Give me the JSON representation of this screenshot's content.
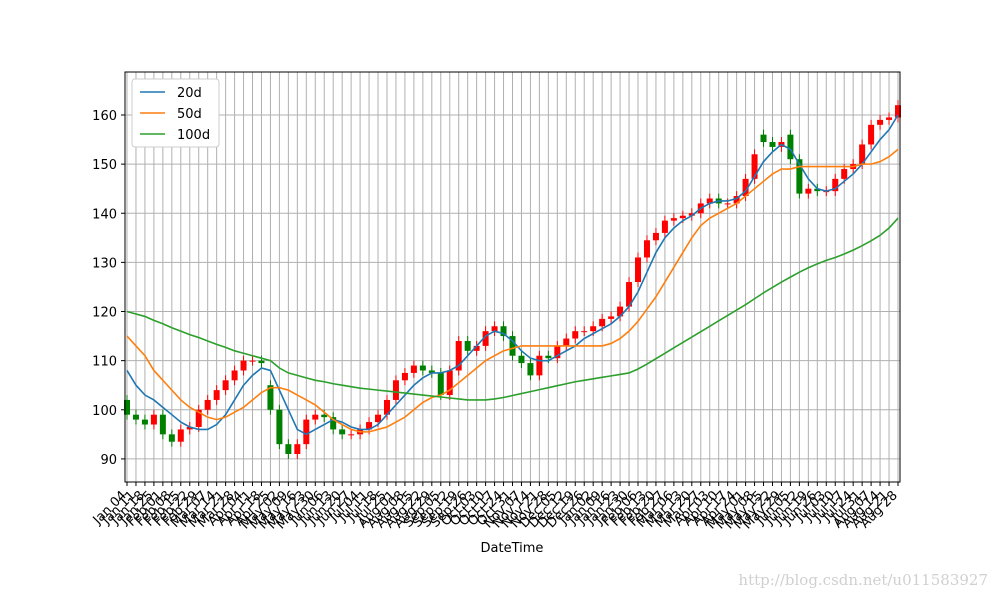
{
  "chart_data": {
    "type": "candlestick",
    "x_label": "DateTime",
    "watermark": "http://blog.csdn.net/u011583927",
    "categories": [
      "Jan 04",
      "Jan 11",
      "Jan 18",
      "Jan 25",
      "Feb 01",
      "Feb 08",
      "Feb 15",
      "Feb 22",
      "Feb 29",
      "Mar 07",
      "Mar 14",
      "Mar 21",
      "Mar 28",
      "Apr 04",
      "Apr 11",
      "Apr 18",
      "Apr 25",
      "May 02",
      "May 09",
      "May 16",
      "May 23",
      "May 30",
      "Jun 06",
      "Jun 13",
      "Jun 20",
      "Jun 27",
      "Jul 04",
      "Jul 11",
      "Jul 18",
      "Jul 25",
      "Aug 01",
      "Aug 08",
      "Aug 15",
      "Aug 22",
      "Aug 29",
      "Sep 05",
      "Sep 12",
      "Sep 19",
      "Sep 26",
      "Oct 03",
      "Oct 10",
      "Oct 17",
      "Oct 24",
      "Oct 31",
      "Nov 07",
      "Nov 14",
      "Nov 21",
      "Nov 28",
      "Dec 05",
      "Dec 12",
      "Dec 19",
      "Dec 26",
      "Jan 02",
      "Jan 09",
      "Jan 16",
      "Jan 23",
      "Jan 30",
      "Feb 06",
      "Feb 13",
      "Feb 20",
      "Feb 27",
      "Mar 06",
      "Mar 13",
      "Mar 20",
      "Mar 27",
      "Apr 03",
      "Apr 10",
      "Apr 17",
      "Apr 24",
      "May 01",
      "May 08",
      "May 15",
      "May 22",
      "May 29",
      "Jun 05",
      "Jun 12",
      "Jun 19",
      "Jun 26",
      "Jul 03",
      "Jul 10",
      "Jul 17",
      "Jul 24",
      "Jul 31",
      "Aug 07",
      "Aug 14",
      "Aug 21",
      "Aug 28"
    ],
    "open": [
      102,
      99,
      98,
      97,
      99,
      95,
      93.5,
      96,
      96.5,
      100,
      102,
      104,
      106,
      108,
      110,
      110,
      105,
      100,
      93,
      91,
      93,
      98,
      99,
      98.5,
      96,
      95,
      95,
      96,
      97.5,
      99,
      102,
      106,
      107.5,
      109,
      108,
      107.5,
      103,
      108,
      114,
      112,
      113,
      116,
      117,
      115,
      111,
      109.5,
      107,
      111,
      110.5,
      113,
      114.5,
      116,
      116,
      117,
      118.5,
      119,
      121,
      126,
      131,
      134.5,
      136,
      138.5,
      139,
      139.5,
      140,
      142,
      143,
      142,
      142,
      143.5,
      147,
      156,
      154.5,
      153.5,
      156,
      151,
      144,
      145,
      144.5,
      144.5,
      147,
      149,
      150,
      154,
      158,
      159,
      159.5
    ],
    "high": [
      103,
      100,
      99,
      100,
      100,
      96,
      97,
      97.5,
      101,
      103,
      105,
      107,
      109,
      111,
      111,
      111,
      106,
      101,
      94,
      94,
      99,
      100,
      100,
      99.5,
      97,
      96,
      97,
      98.5,
      100,
      103,
      107,
      108.5,
      110,
      110,
      109,
      108.5,
      109,
      115,
      115,
      114,
      117,
      118,
      118,
      116,
      112,
      110.5,
      112,
      112,
      114,
      115.5,
      117,
      117,
      118,
      119.5,
      120,
      122,
      127,
      132,
      135.5,
      137,
      139.5,
      140,
      140.5,
      141,
      143,
      144,
      144,
      143,
      144.5,
      148,
      153,
      157,
      155.5,
      155.5,
      157,
      152,
      146,
      146,
      145.5,
      148,
      150,
      151,
      155,
      159,
      160,
      160.5,
      163
    ],
    "low": [
      98,
      97,
      96,
      96,
      94,
      92.5,
      92.5,
      95,
      95.5,
      99,
      101,
      103,
      105,
      107,
      109,
      108.5,
      99,
      92,
      90,
      90,
      92,
      97,
      97.5,
      95,
      94,
      94,
      94,
      95,
      96.5,
      98,
      101,
      105,
      106.5,
      107,
      106.5,
      102,
      102,
      107,
      111,
      111,
      112,
      115,
      114,
      110,
      108.5,
      106,
      106,
      109.5,
      109.5,
      112,
      113.5,
      115,
      115,
      116,
      117.5,
      118,
      120,
      125,
      130,
      133.5,
      135,
      137.5,
      138,
      138.5,
      139,
      141,
      141,
      141,
      141,
      142.5,
      146,
      153.5,
      152.5,
      152.5,
      150,
      143,
      143,
      143.5,
      143.5,
      143.5,
      146,
      148,
      149,
      153,
      157,
      158,
      158.5
    ],
    "close": [
      99,
      98,
      97,
      99,
      95,
      93.5,
      96,
      96.5,
      100,
      102,
      104,
      106,
      108,
      110,
      110,
      109.5,
      100,
      93,
      91,
      93,
      98,
      99,
      98.5,
      96,
      95,
      95,
      96,
      97.5,
      99,
      102,
      106,
      107.5,
      109,
      108,
      107.5,
      103,
      108,
      114,
      112,
      113,
      116,
      117,
      115,
      111,
      109.5,
      107,
      111,
      110.5,
      113,
      114.5,
      116,
      116,
      117,
      118.5,
      119,
      121,
      126,
      131,
      134.5,
      136,
      138.5,
      139,
      139.5,
      140,
      142,
      143,
      142,
      142,
      143.5,
      147,
      152,
      154.5,
      153.5,
      154.5,
      151,
      144,
      145,
      144.5,
      144.5,
      147,
      149,
      150,
      154,
      158,
      159,
      159.5,
      162
    ],
    "up_color": "#ff0000",
    "down_color": "#008000",
    "series": [
      {
        "name": "20d",
        "color": "#1f77b4",
        "values": [
          108,
          105,
          103,
          102,
          100.5,
          99,
          97.5,
          96.5,
          96,
          96,
          97,
          99,
          102,
          105,
          107,
          108.5,
          108,
          104,
          100,
          96,
          95,
          96,
          97,
          98,
          97.5,
          96.5,
          96,
          96,
          97,
          99,
          101,
          103,
          105,
          106.5,
          107.5,
          107.5,
          108,
          109,
          111,
          113,
          115,
          116,
          115.5,
          114,
          112,
          110.5,
          110,
          110,
          111,
          112,
          113,
          114.5,
          115.5,
          116.5,
          117.5,
          119,
          121,
          124,
          128,
          132,
          135,
          137,
          138.5,
          139.5,
          141,
          142,
          142.5,
          142.5,
          143,
          144.5,
          147.5,
          150.5,
          152.5,
          154,
          153,
          150,
          147,
          145,
          144.5,
          145,
          146.5,
          148,
          150,
          152.5,
          155,
          157,
          160
        ]
      },
      {
        "name": "50d",
        "color": "#ff7f0e",
        "values": [
          115,
          113,
          111,
          108,
          106,
          104,
          102,
          100.5,
          99.5,
          98.5,
          98,
          98.5,
          99.5,
          100.5,
          102,
          103.5,
          104.5,
          104.5,
          104,
          103,
          102,
          101,
          99.5,
          98,
          97,
          96,
          95.5,
          95.5,
          96,
          96.5,
          97.5,
          98.5,
          100,
          101.5,
          102.5,
          103,
          104,
          105.5,
          107,
          108.5,
          110,
          111,
          112,
          112.5,
          113,
          113,
          113,
          113,
          113,
          113,
          113,
          113,
          113,
          113,
          113.5,
          114.5,
          116,
          118,
          120.5,
          123,
          126,
          129,
          132,
          135,
          137.5,
          139,
          140,
          141,
          142,
          143.5,
          145,
          146.5,
          148,
          149,
          149,
          149.5,
          149.5,
          149.5,
          149.5,
          149.5,
          149.5,
          149.5,
          150,
          150,
          150.5,
          151.5,
          153
        ]
      },
      {
        "name": "100d",
        "color": "#2ca02c",
        "values": [
          120,
          119.5,
          119,
          118.2,
          117.5,
          116.7,
          116,
          115.3,
          114.7,
          114,
          113.3,
          112.7,
          112,
          111.5,
          111,
          110.5,
          110,
          108.5,
          107.5,
          107,
          106.5,
          106,
          105.7,
          105.3,
          105,
          104.7,
          104.4,
          104.2,
          104,
          103.8,
          103.6,
          103.4,
          103.2,
          103,
          102.8,
          102.6,
          102.4,
          102.2,
          102,
          102,
          102,
          102.2,
          102.5,
          102.9,
          103.3,
          103.7,
          104.1,
          104.5,
          104.9,
          105.3,
          105.7,
          106,
          106.3,
          106.6,
          106.9,
          107.2,
          107.5,
          108.3,
          109.3,
          110.4,
          111.5,
          112.6,
          113.7,
          114.8,
          115.9,
          117,
          118.1,
          119.2,
          120.3,
          121.4,
          122.6,
          123.8,
          124.9,
          126,
          127,
          128,
          128.9,
          129.7,
          130.4,
          131,
          131.7,
          132.5,
          133.4,
          134.4,
          135.5,
          137,
          139
        ]
      }
    ],
    "ylim": [
      85.3,
      168.75
    ],
    "yticks": [
      90,
      100,
      110,
      120,
      130,
      140,
      150,
      160
    ],
    "grid": true,
    "legend": "upper left"
  }
}
